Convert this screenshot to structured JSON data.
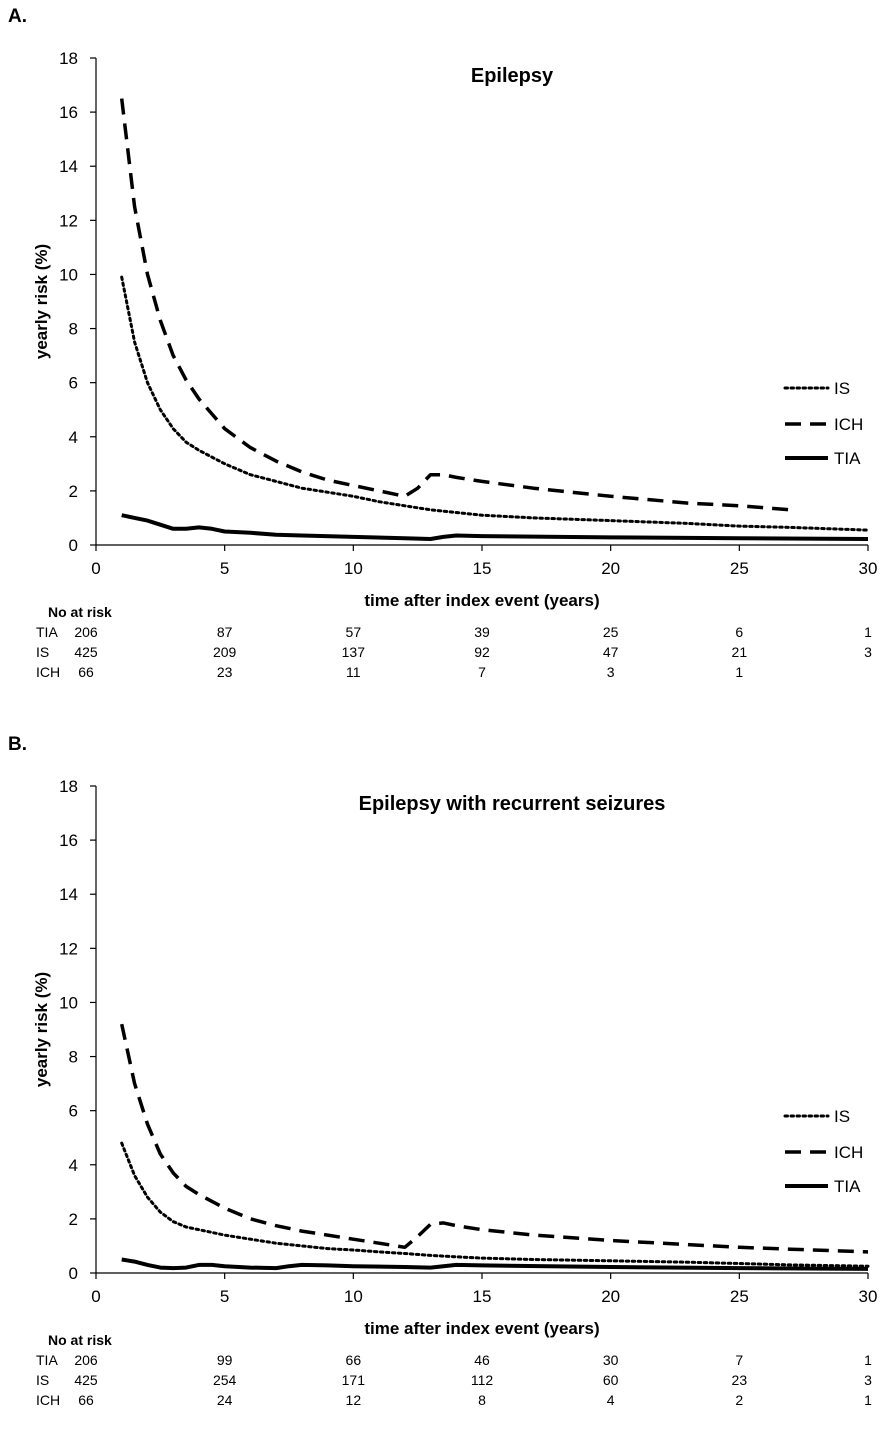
{
  "chart_data": [
    {
      "panel": "A.",
      "type": "line",
      "title": "Epilepsy",
      "xlabel": "time after index event (years)",
      "ylabel": "yearly risk (%)",
      "xlim": [
        0,
        30
      ],
      "ylim": [
        0,
        18
      ],
      "xticks": [
        0,
        5,
        10,
        15,
        20,
        25,
        30
      ],
      "yticks": [
        0,
        2,
        4,
        6,
        8,
        10,
        12,
        14,
        16,
        18
      ],
      "grid": false,
      "legend_position": "right",
      "series": [
        {
          "name": "IS",
          "style": "dotted",
          "x": [
            1,
            1.5,
            2,
            2.5,
            3,
            3.5,
            4,
            5,
            6,
            7,
            8,
            9,
            10,
            11,
            12,
            13,
            14,
            15,
            17,
            20,
            23,
            25,
            27,
            30
          ],
          "y": [
            9.9,
            7.5,
            6.0,
            5.0,
            4.3,
            3.8,
            3.5,
            3.0,
            2.6,
            2.35,
            2.1,
            1.95,
            1.8,
            1.6,
            1.45,
            1.3,
            1.2,
            1.1,
            1.0,
            0.9,
            0.8,
            0.7,
            0.65,
            0.55
          ]
        },
        {
          "name": "ICH",
          "style": "dashed",
          "x": [
            1,
            1.5,
            2,
            2.5,
            3,
            3.5,
            4,
            5,
            6,
            7,
            8,
            9,
            10,
            11,
            12,
            12.5,
            13,
            13.5,
            14,
            15,
            17,
            20,
            23,
            25,
            27
          ],
          "y": [
            16.5,
            12.5,
            10.0,
            8.3,
            7.0,
            6.1,
            5.4,
            4.3,
            3.6,
            3.1,
            2.7,
            2.4,
            2.2,
            2.0,
            1.8,
            2.1,
            2.6,
            2.6,
            2.5,
            2.35,
            2.1,
            1.8,
            1.55,
            1.45,
            1.3
          ]
        },
        {
          "name": "TIA",
          "style": "solid",
          "x": [
            1,
            1.5,
            2,
            2.5,
            3,
            3.5,
            4,
            4.5,
            5,
            6,
            7,
            8,
            10,
            12,
            13,
            13.5,
            14,
            15,
            20,
            25,
            30
          ],
          "y": [
            1.1,
            1.0,
            0.9,
            0.75,
            0.6,
            0.6,
            0.65,
            0.6,
            0.5,
            0.45,
            0.38,
            0.35,
            0.3,
            0.25,
            0.22,
            0.3,
            0.35,
            0.33,
            0.28,
            0.25,
            0.22
          ]
        }
      ],
      "risk_table": {
        "header": "No at risk",
        "rows": [
          {
            "label": "TIA",
            "values": [
              "206",
              "87",
              "57",
              "39",
              "25",
              "6",
              "1"
            ]
          },
          {
            "label": "IS",
            "values": [
              "425",
              "209",
              "137",
              "92",
              "47",
              "21",
              "3"
            ]
          },
          {
            "label": "ICH",
            "values": [
              "66",
              "23",
              "11",
              "7",
              "3",
              "1",
              ""
            ]
          }
        ]
      }
    },
    {
      "panel": "B.",
      "type": "line",
      "title": "Epilepsy with recurrent seizures",
      "xlabel": "time after index event (years)",
      "ylabel": "yearly risk (%)",
      "xlim": [
        0,
        30
      ],
      "ylim": [
        0,
        18
      ],
      "xticks": [
        0,
        5,
        10,
        15,
        20,
        25,
        30
      ],
      "yticks": [
        0,
        2,
        4,
        6,
        8,
        10,
        12,
        14,
        16,
        18
      ],
      "grid": false,
      "legend_position": "right",
      "series": [
        {
          "name": "IS",
          "style": "dotted",
          "x": [
            1,
            1.5,
            2,
            2.5,
            3,
            3.5,
            4,
            5,
            6,
            7,
            8,
            9,
            10,
            11,
            12,
            13,
            14,
            15,
            17,
            20,
            23,
            25,
            27,
            30
          ],
          "y": [
            4.8,
            3.6,
            2.8,
            2.25,
            1.9,
            1.7,
            1.6,
            1.4,
            1.25,
            1.1,
            1.0,
            0.9,
            0.85,
            0.78,
            0.72,
            0.65,
            0.6,
            0.55,
            0.5,
            0.45,
            0.4,
            0.35,
            0.3,
            0.25
          ]
        },
        {
          "name": "ICH",
          "style": "dashed",
          "x": [
            1,
            1.5,
            2,
            2.5,
            3,
            3.5,
            4,
            5,
            6,
            7,
            8,
            9,
            10,
            11,
            12,
            12.5,
            13,
            13.5,
            14,
            15,
            17,
            20,
            23,
            25,
            27,
            30
          ],
          "y": [
            9.2,
            7.0,
            5.5,
            4.4,
            3.7,
            3.2,
            2.9,
            2.4,
            2.0,
            1.75,
            1.55,
            1.4,
            1.25,
            1.1,
            0.95,
            1.35,
            1.8,
            1.85,
            1.75,
            1.6,
            1.4,
            1.2,
            1.05,
            0.95,
            0.88,
            0.78
          ]
        },
        {
          "name": "TIA",
          "style": "solid",
          "x": [
            1,
            1.5,
            2,
            2.5,
            3,
            3.5,
            4,
            4.5,
            5,
            6,
            7,
            7.5,
            8,
            9,
            10,
            12,
            13,
            13.5,
            14,
            15,
            20,
            25,
            30
          ],
          "y": [
            0.5,
            0.42,
            0.3,
            0.2,
            0.18,
            0.2,
            0.3,
            0.3,
            0.25,
            0.2,
            0.18,
            0.25,
            0.3,
            0.28,
            0.25,
            0.22,
            0.2,
            0.25,
            0.3,
            0.28,
            0.22,
            0.18,
            0.15
          ]
        }
      ],
      "risk_table": {
        "header": "No at risk",
        "rows": [
          {
            "label": "TIA",
            "values": [
              "206",
              "99",
              "66",
              "46",
              "30",
              "7",
              "1"
            ]
          },
          {
            "label": "IS",
            "values": [
              "425",
              "254",
              "171",
              "112",
              "60",
              "23",
              "3"
            ]
          },
          {
            "label": "ICH",
            "values": [
              "66",
              "24",
              "12",
              "8",
              "4",
              "2",
              "1"
            ]
          }
        ]
      }
    }
  ]
}
